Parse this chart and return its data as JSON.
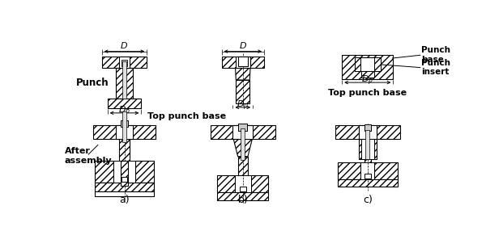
{
  "bg_color": "#ffffff",
  "line_color": "#000000",
  "labels": {
    "punch": "Punch",
    "after_assembly": "After\nassembly",
    "top_punch_base_ab": "Top punch base",
    "top_punch_base_c": "Top punch base",
    "punch_base": "Punch\nbase",
    "punch_insert": "Punch\ninsert",
    "a": "a)",
    "b": "b)",
    "c": "c)"
  },
  "fig_width": 6.0,
  "fig_height": 3.12,
  "dpi": 100
}
